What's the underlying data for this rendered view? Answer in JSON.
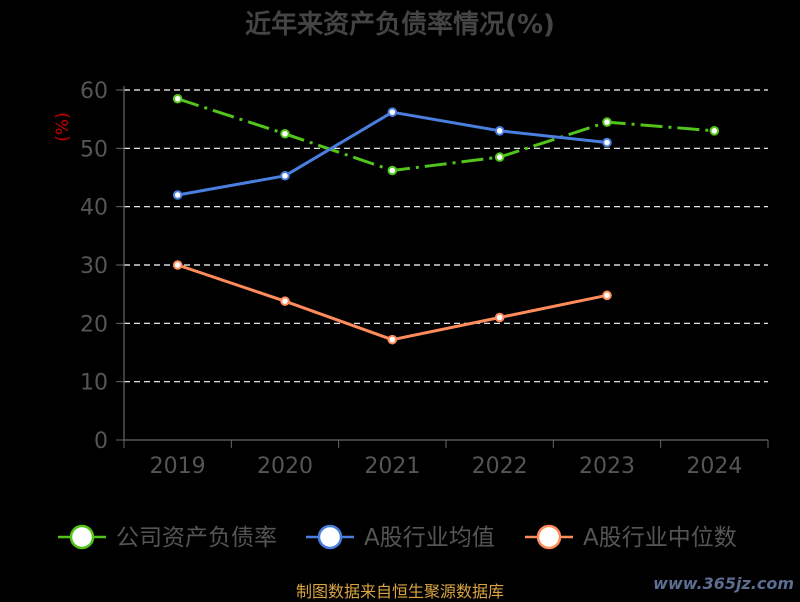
{
  "chart_data": {
    "type": "line",
    "title": "近年来资产负债率情况(%)",
    "ylabel": "(%)",
    "categories": [
      "2019",
      "2020",
      "2021",
      "2022",
      "2023",
      "2024"
    ],
    "ylim": [
      0,
      60
    ],
    "yticks": [
      0,
      10,
      20,
      30,
      40,
      50,
      60
    ],
    "grid": true,
    "legend_position": "bottom",
    "series": [
      {
        "name": "公司资产负债率",
        "color": "#52c41a",
        "dashed": true,
        "values": [
          58.5,
          52.5,
          46.2,
          48.5,
          54.5,
          53.0
        ]
      },
      {
        "name": "A股行业均值",
        "color": "#4a7fe0",
        "dashed": false,
        "values": [
          42.0,
          45.3,
          56.2,
          53.0,
          51.0,
          null
        ]
      },
      {
        "name": "A股行业中位数",
        "color": "#ff8c5a",
        "dashed": false,
        "values": [
          30.0,
          23.8,
          17.2,
          21.0,
          24.8,
          null
        ]
      }
    ]
  },
  "source": "制图数据来自恒生聚源数据库",
  "watermark": "www.365jz.com"
}
